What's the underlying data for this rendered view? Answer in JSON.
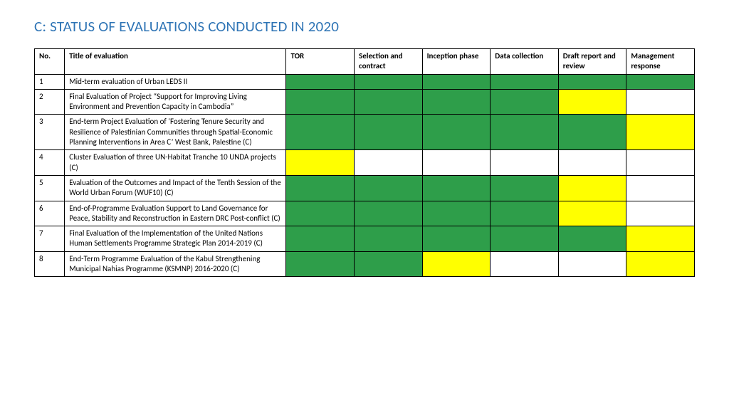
{
  "title": "C:  STATUS OF EVALUATIONS CONDUCTED IN 2020",
  "colors": {
    "title": "#2e74b5",
    "border": "#000000",
    "status": {
      "done": "#2e9e4a",
      "partial": "#ffff00",
      "none": "#ffffff"
    }
  },
  "table": {
    "columns": [
      "No.",
      "Title of evaluation",
      "TOR",
      "Selection and contract",
      "Inception phase",
      "Data collection",
      "Draft report and review",
      "Management response"
    ],
    "rows": [
      {
        "no": "1",
        "title": "Mid-term evaluation of Urban LEDS II",
        "status": [
          "done",
          "done",
          "done",
          "done",
          "done",
          "done"
        ]
      },
      {
        "no": "2",
        "title": "Final Evaluation of Project “Support for Improving Living Environment and Prevention Capacity in Cambodia”",
        "status": [
          "done",
          "done",
          "done",
          "done",
          "partial",
          "none"
        ]
      },
      {
        "no": "3",
        "title": "End-term Project Evaluation of ‘Fostering Tenure Security and Resilience of Palestinian Communities through Spatial-Economic Planning Interventions in Area C’ West Bank, Palestine (C)",
        "status": [
          "done",
          "done",
          "done",
          "done",
          "done",
          "partial"
        ]
      },
      {
        "no": "4",
        "title": "Cluster Evaluation of three UN-Habitat Tranche 10 UNDA projects (C)",
        "status": [
          "partial",
          "none",
          "none",
          "none",
          "none",
          "none"
        ]
      },
      {
        "no": "5",
        "title": "Evaluation of the Outcomes and Impact of the Tenth Session of the World Urban Forum (WUF10) (C)",
        "status": [
          "done",
          "done",
          "done",
          "done",
          "partial",
          "none"
        ]
      },
      {
        "no": "6",
        "title": "End-of-Programme Evaluation Support to Land Governance for Peace, Stability and Reconstruction in Eastern DRC Post-conflict (C)",
        "status": [
          "done",
          "done",
          "done",
          "done",
          "partial",
          "none"
        ]
      },
      {
        "no": "7",
        "title": "Final Evaluation of the Implementation of the United Nations Human Settlements Programme Strategic Plan 2014-2019 (C)",
        "status": [
          "done",
          "done",
          "done",
          "done",
          "done",
          "partial"
        ]
      },
      {
        "no": "8",
        "title": "End-Term Programme Evaluation of the Kabul Strengthening Municipal Nahias Programme (KSMNP) 2016-2020 (C)",
        "status": [
          "done",
          "done",
          "partial",
          "none",
          "none",
          "partial"
        ]
      }
    ]
  }
}
